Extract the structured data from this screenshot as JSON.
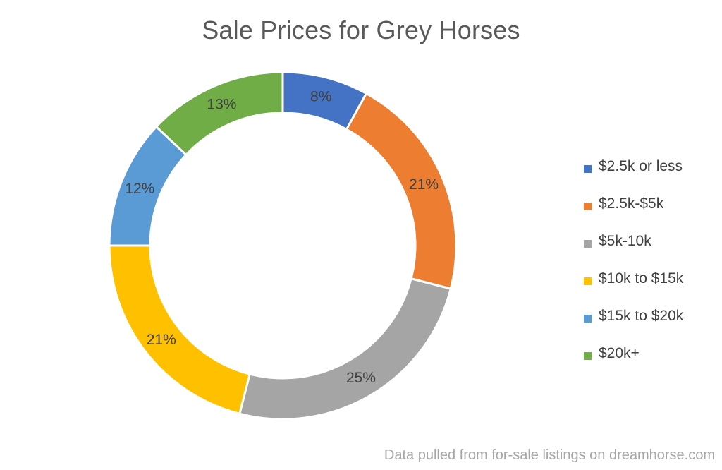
{
  "chart_data": {
    "type": "pie",
    "variant": "donut",
    "title": "Sale Prices for Grey Horses",
    "categories": [
      "$2.5k or less",
      "$2.5k-$5k",
      "$5k-10k",
      "$10k to $15k",
      "$15k to $20k",
      "$20k+"
    ],
    "values": [
      8,
      21,
      25,
      21,
      12,
      13
    ],
    "data_labels": [
      "8%",
      "21%",
      "25%",
      "21%",
      "12%",
      "13%"
    ],
    "colors": [
      "#4472C4",
      "#ED7D31",
      "#A5A5A5",
      "#FFC000",
      "#5B9BD5",
      "#70AD47"
    ],
    "legend_position": "right",
    "annotation": "Data pulled from for-sale listings on dreamhorse.com"
  }
}
